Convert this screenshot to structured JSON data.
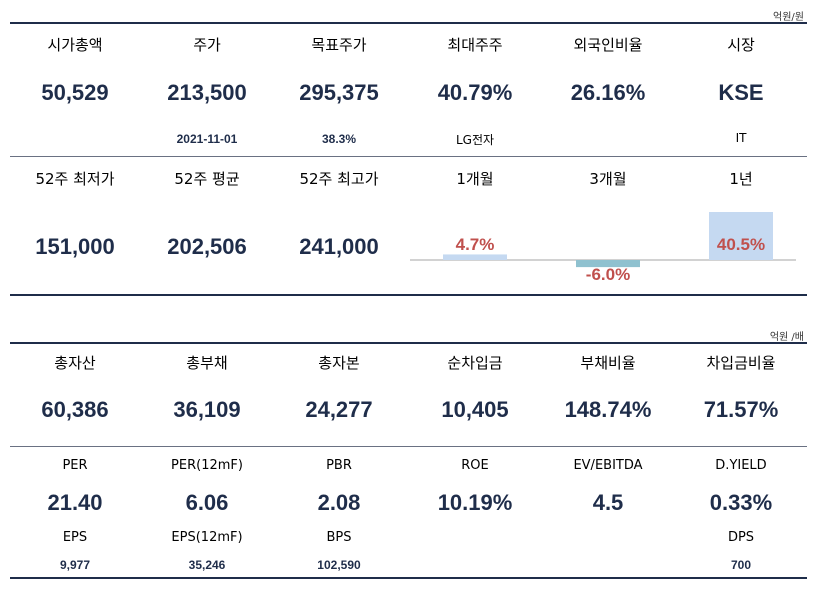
{
  "section1": {
    "unit": "억원/원",
    "row1": [
      {
        "label": "시가총액",
        "value": "50,529",
        "sub": ""
      },
      {
        "label": "주가",
        "value": "213,500",
        "sub": "2021-11-01"
      },
      {
        "label": "목표주가",
        "value": "295,375",
        "sub": "38.3%"
      },
      {
        "label": "최대주주",
        "value": "40.79%",
        "sub": "LG전자"
      },
      {
        "label": "외국인비율",
        "value": "26.16%",
        "sub": ""
      },
      {
        "label": "시장",
        "value": "KSE",
        "sub": "IT"
      }
    ],
    "row2": [
      {
        "label": "52주 최저가",
        "value": "151,000"
      },
      {
        "label": "52주 평균",
        "value": "202,506"
      },
      {
        "label": "52주 최고가",
        "value": "241,000"
      }
    ],
    "performance": {
      "labels": [
        "1개월",
        "3개월",
        "1년"
      ],
      "values_text": [
        "4.7%",
        "-6.0%",
        "40.5%"
      ]
    }
  },
  "chart_data": {
    "type": "bar",
    "categories": [
      "1개월",
      "3개월",
      "1년"
    ],
    "values": [
      4.7,
      -6.0,
      40.5
    ],
    "colors": {
      "positive": "#c5d9f1",
      "negative": "#8fc1cf",
      "label": "#c0504d"
    }
  },
  "section2": {
    "unit": "억원 /배",
    "row1": [
      {
        "label": "총자산",
        "value": "60,386"
      },
      {
        "label": "총부채",
        "value": "36,109"
      },
      {
        "label": "총자본",
        "value": "24,277"
      },
      {
        "label": "순차입금",
        "value": "10,405"
      },
      {
        "label": "부채비율",
        "value": "148.74%"
      },
      {
        "label": "차입금비율",
        "value": "71.57%"
      }
    ],
    "row2": [
      {
        "label": "PER",
        "value": "21.40",
        "sublabel": "EPS",
        "subvalue": "9,977"
      },
      {
        "label": "PER(12mF)",
        "value": "6.06",
        "sublabel": "EPS(12mF)",
        "subvalue": "35,246"
      },
      {
        "label": "PBR",
        "value": "2.08",
        "sublabel": "BPS",
        "subvalue": "102,590"
      },
      {
        "label": "ROE",
        "value": "10.19%",
        "sublabel": "",
        "subvalue": ""
      },
      {
        "label": "EV/EBITDA",
        "value": "4.5",
        "sublabel": "",
        "subvalue": ""
      },
      {
        "label": "D.YIELD",
        "value": "0.33%",
        "sublabel": "DPS",
        "subvalue": "700"
      }
    ]
  }
}
